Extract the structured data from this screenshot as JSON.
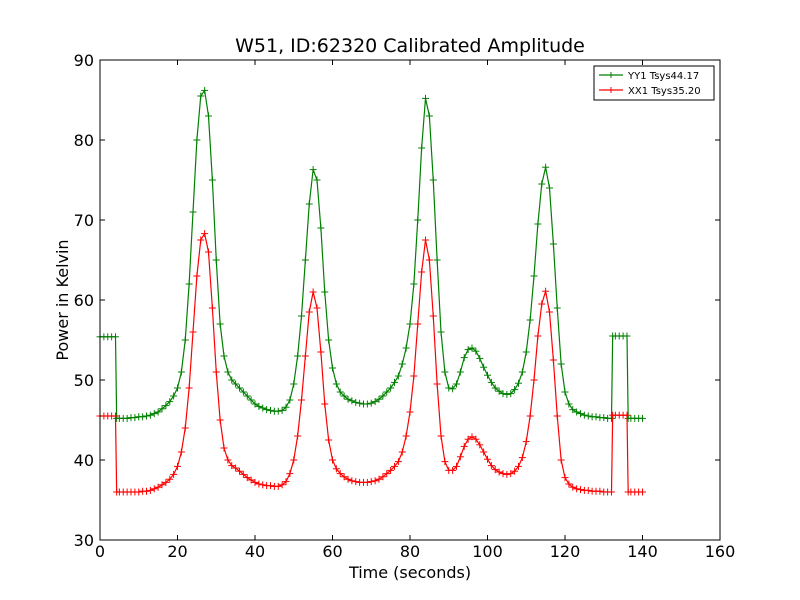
{
  "chart_data": {
    "type": "line",
    "title": "W51, ID:62320 Calibrated Amplitude",
    "xlabel": "Time (seconds)",
    "ylabel": "Power in Kelvin",
    "xlim": [
      0,
      160
    ],
    "ylim": [
      30,
      90
    ],
    "xticks": [
      "0",
      "20",
      "40",
      "60",
      "80",
      "100",
      "120",
      "140",
      "160"
    ],
    "yticks": [
      "30",
      "40",
      "50",
      "60",
      "70",
      "80",
      "90"
    ],
    "grid": false,
    "legend_position": "top-right",
    "marker": "+",
    "series": [
      {
        "name": "YY1 Tsys44.17",
        "color": "#008000",
        "points": [
          [
            0,
            55.4
          ],
          [
            1,
            55.4
          ],
          [
            2,
            55.4
          ],
          [
            3,
            55.4
          ],
          [
            4,
            55.4
          ],
          [
            4.3,
            45.2
          ],
          [
            5,
            45.2
          ],
          [
            6,
            45.2
          ],
          [
            7,
            45.2
          ],
          [
            8,
            45.3
          ],
          [
            9,
            45.3
          ],
          [
            10,
            45.4
          ],
          [
            11,
            45.4
          ],
          [
            12,
            45.5
          ],
          [
            13,
            45.6
          ],
          [
            14,
            45.8
          ],
          [
            15,
            46.0
          ],
          [
            16,
            46.4
          ],
          [
            17,
            46.8
          ],
          [
            18,
            47.3
          ],
          [
            19,
            48.0
          ],
          [
            20,
            49.0
          ],
          [
            21,
            51.0
          ],
          [
            22,
            55.0
          ],
          [
            23,
            62.0
          ],
          [
            24,
            71.0
          ],
          [
            25,
            80.0
          ],
          [
            26,
            85.5
          ],
          [
            27,
            86.2
          ],
          [
            28,
            83.0
          ],
          [
            29,
            75.0
          ],
          [
            30,
            65.0
          ],
          [
            31,
            57.0
          ],
          [
            32,
            53.0
          ],
          [
            33,
            51.0
          ],
          [
            34,
            50.0
          ],
          [
            35,
            49.5
          ],
          [
            36,
            49.0
          ],
          [
            37,
            48.5
          ],
          [
            38,
            48.0
          ],
          [
            39,
            47.5
          ],
          [
            40,
            47.0
          ],
          [
            41,
            46.7
          ],
          [
            42,
            46.5
          ],
          [
            43,
            46.3
          ],
          [
            44,
            46.2
          ],
          [
            45,
            46.1
          ],
          [
            46,
            46.1
          ],
          [
            47,
            46.2
          ],
          [
            48,
            46.6
          ],
          [
            49,
            47.5
          ],
          [
            50,
            49.5
          ],
          [
            51,
            53.0
          ],
          [
            52,
            58.0
          ],
          [
            53,
            65.0
          ],
          [
            54,
            72.0
          ],
          [
            55,
            76.3
          ],
          [
            56,
            75.0
          ],
          [
            57,
            69.0
          ],
          [
            58,
            61.0
          ],
          [
            59,
            55.0
          ],
          [
            60,
            51.5
          ],
          [
            61,
            49.5
          ],
          [
            62,
            48.5
          ],
          [
            63,
            48.0
          ],
          [
            64,
            47.6
          ],
          [
            65,
            47.4
          ],
          [
            66,
            47.2
          ],
          [
            67,
            47.1
          ],
          [
            68,
            47.0
          ],
          [
            69,
            47.0
          ],
          [
            70,
            47.1
          ],
          [
            71,
            47.3
          ],
          [
            72,
            47.6
          ],
          [
            73,
            48.0
          ],
          [
            74,
            48.5
          ],
          [
            75,
            49.0
          ],
          [
            76,
            49.7
          ],
          [
            77,
            50.5
          ],
          [
            78,
            52.0
          ],
          [
            79,
            54.0
          ],
          [
            80,
            57.0
          ],
          [
            81,
            62.0
          ],
          [
            82,
            70.0
          ],
          [
            83,
            79.0
          ],
          [
            84,
            85.2
          ],
          [
            85,
            83.0
          ],
          [
            86,
            75.0
          ],
          [
            87,
            65.0
          ],
          [
            88,
            56.0
          ],
          [
            89,
            51.0
          ],
          [
            90,
            49.0
          ],
          [
            91,
            48.9
          ],
          [
            92,
            49.5
          ],
          [
            93,
            51.0
          ],
          [
            94,
            52.8
          ],
          [
            95,
            53.8
          ],
          [
            96,
            54.0
          ],
          [
            97,
            53.6
          ],
          [
            98,
            52.7
          ],
          [
            99,
            51.6
          ],
          [
            100,
            50.6
          ],
          [
            101,
            49.7
          ],
          [
            102,
            49.0
          ],
          [
            103,
            48.6
          ],
          [
            104,
            48.3
          ],
          [
            105,
            48.2
          ],
          [
            106,
            48.3
          ],
          [
            107,
            48.8
          ],
          [
            108,
            49.6
          ],
          [
            109,
            51.0
          ],
          [
            110,
            53.5
          ],
          [
            111,
            57.5
          ],
          [
            112,
            63.0
          ],
          [
            113,
            69.5
          ],
          [
            114,
            74.5
          ],
          [
            115,
            76.6
          ],
          [
            116,
            74.0
          ],
          [
            117,
            67.0
          ],
          [
            118,
            59.0
          ],
          [
            119,
            52.0
          ],
          [
            120,
            48.5
          ],
          [
            121,
            47.0
          ],
          [
            122,
            46.3
          ],
          [
            123,
            46.0
          ],
          [
            124,
            45.8
          ],
          [
            125,
            45.6
          ],
          [
            126,
            45.5
          ],
          [
            127,
            45.4
          ],
          [
            128,
            45.4
          ],
          [
            129,
            45.3
          ],
          [
            130,
            45.3
          ],
          [
            131,
            45.2
          ],
          [
            132,
            45.2
          ],
          [
            132.3,
            55.5
          ],
          [
            133,
            55.5
          ],
          [
            134,
            55.5
          ],
          [
            135,
            55.5
          ],
          [
            136,
            55.5
          ],
          [
            136.3,
            45.2
          ],
          [
            137,
            45.2
          ],
          [
            138,
            45.2
          ],
          [
            139,
            45.2
          ],
          [
            140,
            45.2
          ]
        ]
      },
      {
        "name": "XX1 Tsys35.20",
        "color": "#ff0000",
        "points": [
          [
            0,
            45.5
          ],
          [
            1,
            45.5
          ],
          [
            2,
            45.5
          ],
          [
            3,
            45.5
          ],
          [
            4,
            45.5
          ],
          [
            4.3,
            36.0
          ],
          [
            5,
            36.0
          ],
          [
            6,
            36.0
          ],
          [
            7,
            36.0
          ],
          [
            8,
            36.0
          ],
          [
            9,
            36.0
          ],
          [
            10,
            36.0
          ],
          [
            11,
            36.1
          ],
          [
            12,
            36.1
          ],
          [
            13,
            36.2
          ],
          [
            14,
            36.4
          ],
          [
            15,
            36.6
          ],
          [
            16,
            36.9
          ],
          [
            17,
            37.2
          ],
          [
            18,
            37.6
          ],
          [
            19,
            38.2
          ],
          [
            20,
            39.2
          ],
          [
            21,
            41.0
          ],
          [
            22,
            44.0
          ],
          [
            23,
            49.0
          ],
          [
            24,
            56.0
          ],
          [
            25,
            63.0
          ],
          [
            26,
            67.5
          ],
          [
            27,
            68.3
          ],
          [
            28,
            66.0
          ],
          [
            29,
            59.0
          ],
          [
            30,
            51.0
          ],
          [
            31,
            45.0
          ],
          [
            32,
            41.5
          ],
          [
            33,
            40.0
          ],
          [
            34,
            39.3
          ],
          [
            35,
            39.0
          ],
          [
            36,
            38.6
          ],
          [
            37,
            38.2
          ],
          [
            38,
            37.8
          ],
          [
            39,
            37.5
          ],
          [
            40,
            37.2
          ],
          [
            41,
            37.0
          ],
          [
            42,
            36.9
          ],
          [
            43,
            36.8
          ],
          [
            44,
            36.8
          ],
          [
            45,
            36.7
          ],
          [
            46,
            36.7
          ],
          [
            47,
            36.9
          ],
          [
            48,
            37.3
          ],
          [
            49,
            38.3
          ],
          [
            50,
            40.0
          ],
          [
            51,
            43.0
          ],
          [
            52,
            47.5
          ],
          [
            53,
            53.0
          ],
          [
            54,
            58.5
          ],
          [
            55,
            61.0
          ],
          [
            56,
            59.0
          ],
          [
            57,
            53.5
          ],
          [
            58,
            47.0
          ],
          [
            59,
            42.5
          ],
          [
            60,
            40.0
          ],
          [
            61,
            38.9
          ],
          [
            62,
            38.3
          ],
          [
            63,
            37.9
          ],
          [
            64,
            37.6
          ],
          [
            65,
            37.4
          ],
          [
            66,
            37.3
          ],
          [
            67,
            37.2
          ],
          [
            68,
            37.2
          ],
          [
            69,
            37.2
          ],
          [
            70,
            37.3
          ],
          [
            71,
            37.4
          ],
          [
            72,
            37.6
          ],
          [
            73,
            37.9
          ],
          [
            74,
            38.3
          ],
          [
            75,
            38.7
          ],
          [
            76,
            39.2
          ],
          [
            77,
            39.8
          ],
          [
            78,
            41.0
          ],
          [
            79,
            43.0
          ],
          [
            80,
            46.0
          ],
          [
            81,
            50.5
          ],
          [
            82,
            57.0
          ],
          [
            83,
            63.5
          ],
          [
            84,
            67.5
          ],
          [
            85,
            65.0
          ],
          [
            86,
            58.0
          ],
          [
            87,
            49.5
          ],
          [
            88,
            43.0
          ],
          [
            89,
            39.8
          ],
          [
            90,
            38.7
          ],
          [
            91,
            38.7
          ],
          [
            92,
            39.2
          ],
          [
            93,
            40.4
          ],
          [
            94,
            41.7
          ],
          [
            95,
            42.6
          ],
          [
            96,
            42.9
          ],
          [
            97,
            42.6
          ],
          [
            98,
            41.9
          ],
          [
            99,
            41.0
          ],
          [
            100,
            40.1
          ],
          [
            101,
            39.3
          ],
          [
            102,
            38.8
          ],
          [
            103,
            38.5
          ],
          [
            104,
            38.3
          ],
          [
            105,
            38.2
          ],
          [
            106,
            38.3
          ],
          [
            107,
            38.6
          ],
          [
            108,
            39.2
          ],
          [
            109,
            40.3
          ],
          [
            110,
            42.3
          ],
          [
            111,
            45.5
          ],
          [
            112,
            50.0
          ],
          [
            113,
            55.5
          ],
          [
            114,
            59.5
          ],
          [
            115,
            61.1
          ],
          [
            116,
            58.5
          ],
          [
            117,
            52.5
          ],
          [
            118,
            45.5
          ],
          [
            119,
            40.0
          ],
          [
            120,
            37.8
          ],
          [
            121,
            37.0
          ],
          [
            122,
            36.6
          ],
          [
            123,
            36.4
          ],
          [
            124,
            36.3
          ],
          [
            125,
            36.2
          ],
          [
            126,
            36.2
          ],
          [
            127,
            36.1
          ],
          [
            128,
            36.1
          ],
          [
            129,
            36.1
          ],
          [
            130,
            36.0
          ],
          [
            131,
            36.0
          ],
          [
            132,
            36.0
          ],
          [
            132.3,
            45.6
          ],
          [
            133,
            45.6
          ],
          [
            134,
            45.6
          ],
          [
            135,
            45.6
          ],
          [
            136,
            45.6
          ],
          [
            136.3,
            36.0
          ],
          [
            137,
            36.0
          ],
          [
            138,
            36.0
          ],
          [
            139,
            36.0
          ],
          [
            140,
            36.0
          ]
        ]
      }
    ]
  }
}
